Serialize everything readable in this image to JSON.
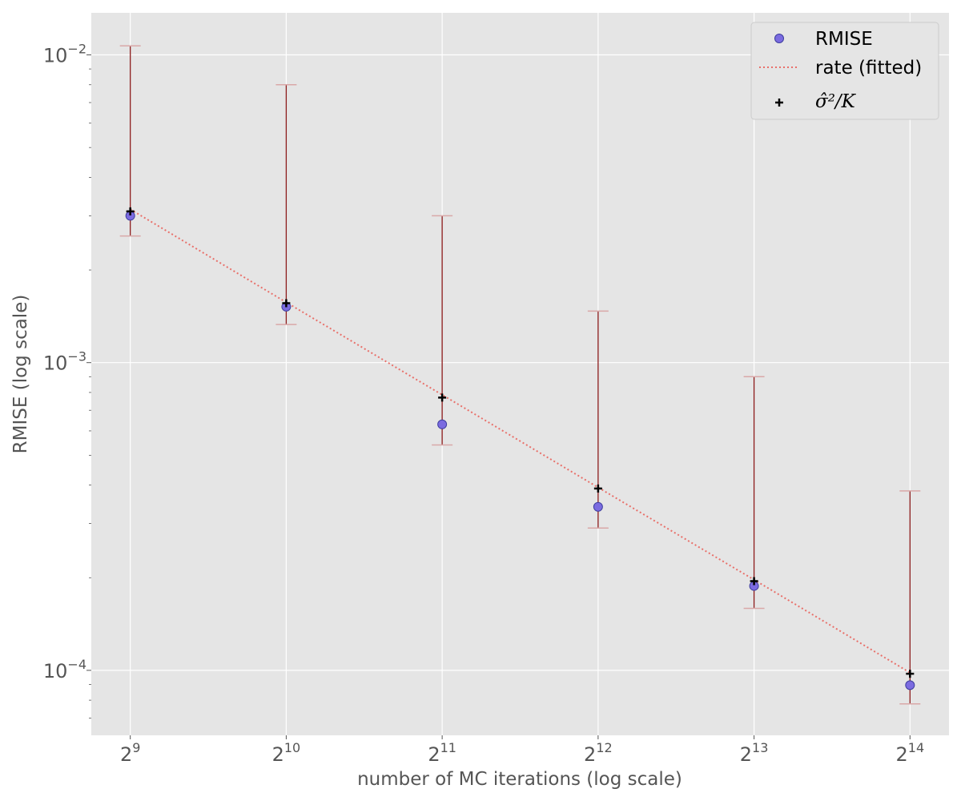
{
  "chart_data": {
    "type": "scatter",
    "title": "",
    "xlabel": "number of MC iterations (log scale)",
    "ylabel": "RMISE (log scale)",
    "xscale": "log2",
    "yscale": "log10",
    "x_exponents": [
      9,
      10,
      11,
      12,
      13,
      14
    ],
    "x_tick_labels": [
      {
        "base": "2",
        "exp": "9"
      },
      {
        "base": "2",
        "exp": "10"
      },
      {
        "base": "2",
        "exp": "11"
      },
      {
        "base": "2",
        "exp": "12"
      },
      {
        "base": "2",
        "exp": "13"
      },
      {
        "base": "2",
        "exp": "14"
      }
    ],
    "y_tick_labels": [
      {
        "value": 0.01,
        "base": "10",
        "exp": "−2"
      },
      {
        "value": 0.001,
        "base": "10",
        "exp": "−3"
      },
      {
        "value": 0.0001,
        "base": "10",
        "exp": "−4"
      }
    ],
    "x": [
      512,
      1024,
      2048,
      4096,
      8192,
      16384
    ],
    "ylim": [
      6.15e-05,
      0.0137
    ],
    "xlim_exponent": [
      8.75,
      14.25
    ],
    "grid": true,
    "legend_position": "top-right",
    "series": [
      {
        "name": "RMISE",
        "kind": "points",
        "values": [
          0.003,
          0.00152,
          0.00063,
          0.00034,
          0.000188,
          8.95e-05
        ],
        "err_low": [
          0.00258,
          0.00133,
          0.00054,
          0.00029,
          0.000159,
          7.78e-05
        ],
        "err_high": [
          0.0107,
          0.008,
          0.003,
          0.00147,
          0.0009,
          0.000383
        ]
      },
      {
        "name": "rate (fitted)",
        "kind": "line",
        "values": [
          0.00315,
          0.00157,
          0.000786,
          0.000393,
          0.000197,
          9.83e-05
        ]
      },
      {
        "name": "σ̂²/K",
        "kind": "markers",
        "values": [
          0.0031,
          0.00156,
          0.00077,
          0.00039,
          0.000195,
          9.75e-05
        ]
      }
    ],
    "colors": {
      "background": "#e5e5e5",
      "grid": "#ffffff",
      "point_fill": "#7b6be0",
      "point_edge": "#3d3d9e",
      "errorbar": "#8b1a1a",
      "cap": "#d9a8a8",
      "fit_line": "#e8706a",
      "marker": "#000000"
    }
  }
}
